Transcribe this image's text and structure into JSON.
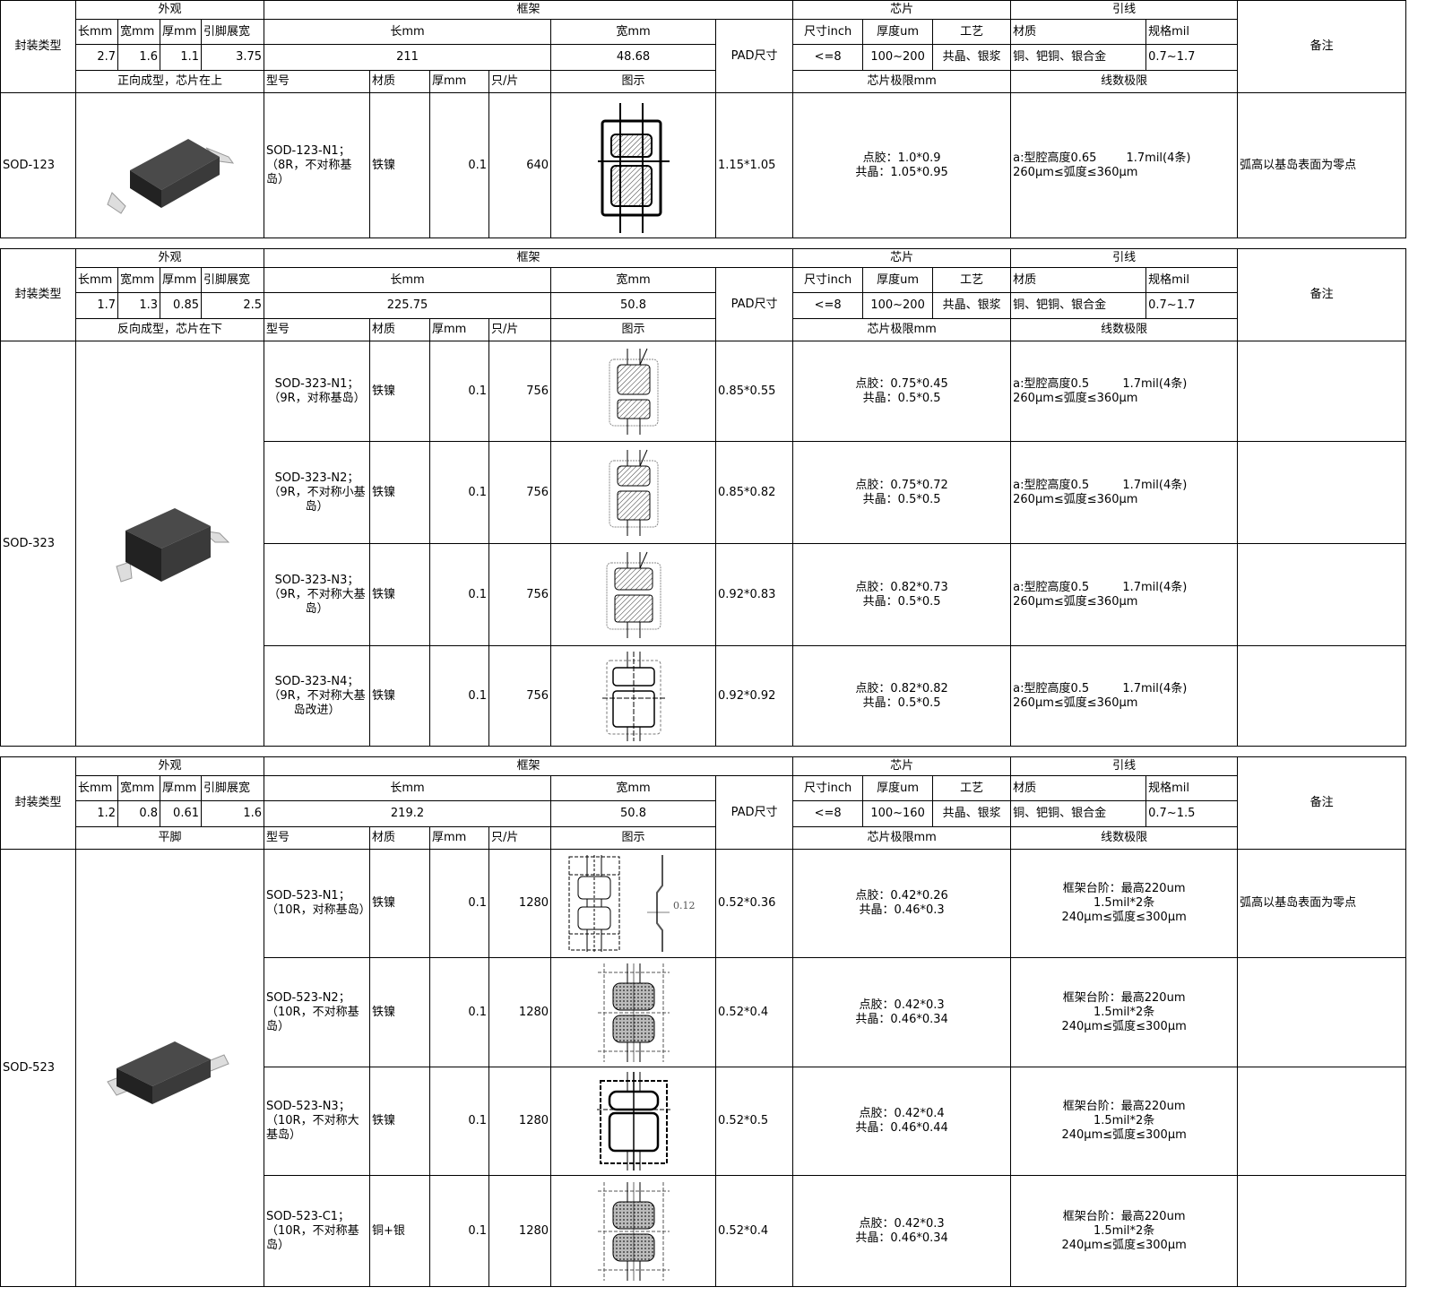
{
  "headers": {
    "package_type": "封装类型",
    "appearance": "外观",
    "frame": "框架",
    "chip": "芯片",
    "wire": "引线",
    "remark": "备注",
    "length_mm": "长mm",
    "width_mm": "宽mm",
    "thickness_mm": "厚mm",
    "lead_span": "引脚展宽",
    "pad_size": "PAD尺寸",
    "size_inch": "尺寸inch",
    "thickness_um": "厚度um",
    "process": "工艺",
    "material": "材质",
    "spec_mil": "规格mil",
    "model": "型号",
    "per_strip": "只/片",
    "diagram": "图示",
    "chip_limit": "芯片极限mm",
    "wire_limit": "线数极限"
  },
  "sections": [
    {
      "package": "SOD-123",
      "dims": [
        "2.7",
        "1.6",
        "1.1",
        "3.75"
      ],
      "frame_length": "211",
      "frame_width": "48.68",
      "chip_size": "<=8",
      "chip_thickness": "100~200",
      "process": "共晶、银浆",
      "wire_material": "铜、钯铜、银合金",
      "wire_spec": "0.7~1.7",
      "forming": "正向成型，芯片在上",
      "image": "sod123",
      "rows": [
        {
          "model": "SOD-123-N1；\n（8R，不对称基岛）",
          "material": "铁镍",
          "thickness": "0.1",
          "per_strip": "640",
          "diagram": "sod123-frame",
          "pad": "1.15*1.05",
          "chip_limit": "点胶：1.0*0.9\n共晶：1.05*0.95",
          "wire_limit": "a:型腔高度0.65        1.7mil(4条)            260μm≤弧度≤360μm",
          "remark": "弧高以基岛表面为零点"
        }
      ]
    },
    {
      "package": "SOD-323",
      "dims": [
        "1.7",
        "1.3",
        "0.85",
        "2.5"
      ],
      "frame_length": "225.75",
      "frame_width": "50.8",
      "chip_size": "<=8",
      "chip_thickness": "100~200",
      "process": "共晶、银浆",
      "wire_material": "铜、钯铜、银合金",
      "wire_spec": "0.7~1.7",
      "forming": "反向成型，芯片在下",
      "image": "sod323",
      "rows": [
        {
          "model": "SOD-323-N1；\n（9R，对称基岛）",
          "material": "铁镍",
          "thickness": "0.1",
          "per_strip": "756",
          "diagram": "hatch-equal",
          "pad": "0.85*0.55",
          "chip_limit": "点胶：0.75*0.45\n共晶：0.5*0.5",
          "wire_limit": "a:型腔高度0.5         1.7mil(4条)            260μm≤弧度≤360μm",
          "remark": ""
        },
        {
          "model": "SOD-323-N2；\n（9R，不对称小基岛）",
          "material": "铁镍",
          "thickness": "0.1",
          "per_strip": "756",
          "diagram": "hatch-small",
          "pad": "0.85*0.82",
          "chip_limit": "点胶：0.75*0.72\n共晶：0.5*0.5",
          "wire_limit": "a:型腔高度0.5         1.7mil(4条)            260μm≤弧度≤360μm",
          "remark": ""
        },
        {
          "model": "SOD-323-N3；\n（9R，不对称大基岛）",
          "material": "铁镍",
          "thickness": "0.1",
          "per_strip": "756",
          "diagram": "hatch-large",
          "pad": "0.92*0.83",
          "chip_limit": "点胶：0.82*0.73\n共晶：0.5*0.5",
          "wire_limit": "a:型腔高度0.5         1.7mil(4条)            260μm≤弧度≤360μm",
          "remark": ""
        },
        {
          "model": "SOD-323-N4；\n（9R，不对称大基岛改进）",
          "material": "铁镍",
          "thickness": "0.1",
          "per_strip": "756",
          "diagram": "outline-grid",
          "pad": "0.92*0.92",
          "chip_limit": "点胶：0.82*0.82\n共晶：0.5*0.5",
          "wire_limit": "a:型腔高度0.5         1.7mil(4条)            260μm≤弧度≤360μm",
          "remark": ""
        }
      ]
    },
    {
      "package": "SOD-523",
      "dims": [
        "1.2",
        "0.8",
        "0.61",
        "1.6"
      ],
      "frame_length": "219.2",
      "frame_width": "50.8",
      "chip_size": "<=8",
      "chip_thickness": "100~160",
      "process": "共晶、银浆",
      "wire_material": "铜、钯铜、银合金",
      "wire_spec": "0.7~1.5",
      "forming": "平脚",
      "image": "sod523",
      "rows": [
        {
          "model": "SOD-523-N1；\n（10R，对称基岛）",
          "material": "铁镍",
          "thickness": "0.1",
          "per_strip": "1280",
          "diagram": "outline-side",
          "diagram_label": "0.12",
          "pad": "0.52*0.36",
          "chip_limit": "点胶：0.42*0.26\n共晶：0.46*0.3",
          "wire_limit": "框架台阶：最高220um\n1.5mil*2条\n240μm≤弧度≤300μm",
          "remark": "弧高以基岛表面为零点"
        },
        {
          "model": "SOD-523-N2；\n（10R，不对称基岛）",
          "material": "铁镍",
          "thickness": "0.1",
          "per_strip": "1280",
          "diagram": "cross-hatch",
          "pad": "0.52*0.4",
          "chip_limit": "点胶：0.42*0.3\n共晶：0.46*0.34",
          "wire_limit": "框架台阶：最高220um\n1.5mil*2条\n240μm≤弧度≤300μm",
          "remark": ""
        },
        {
          "model": "SOD-523-N3；\n（10R，不对称大基岛）",
          "material": "铁镍",
          "thickness": "0.1",
          "per_strip": "1280",
          "diagram": "outline-bold",
          "pad": "0.52*0.5",
          "chip_limit": "点胶：0.42*0.4\n共晶：0.46*0.44",
          "wire_limit": "框架台阶：最高220um\n1.5mil*2条\n240μm≤弧度≤300μm",
          "remark": ""
        },
        {
          "model": "SOD-523-C1；\n（10R，不对称基岛）",
          "material": "铜+银",
          "thickness": "0.1",
          "per_strip": "1280",
          "diagram": "cross-hatch",
          "pad": "0.52*0.4",
          "chip_limit": "点胶：0.42*0.3\n共晶：0.46*0.34",
          "wire_limit": "框架台阶：最高220um\n1.5mil*2条\n240μm≤弧度≤300μm",
          "remark": ""
        }
      ]
    }
  ]
}
